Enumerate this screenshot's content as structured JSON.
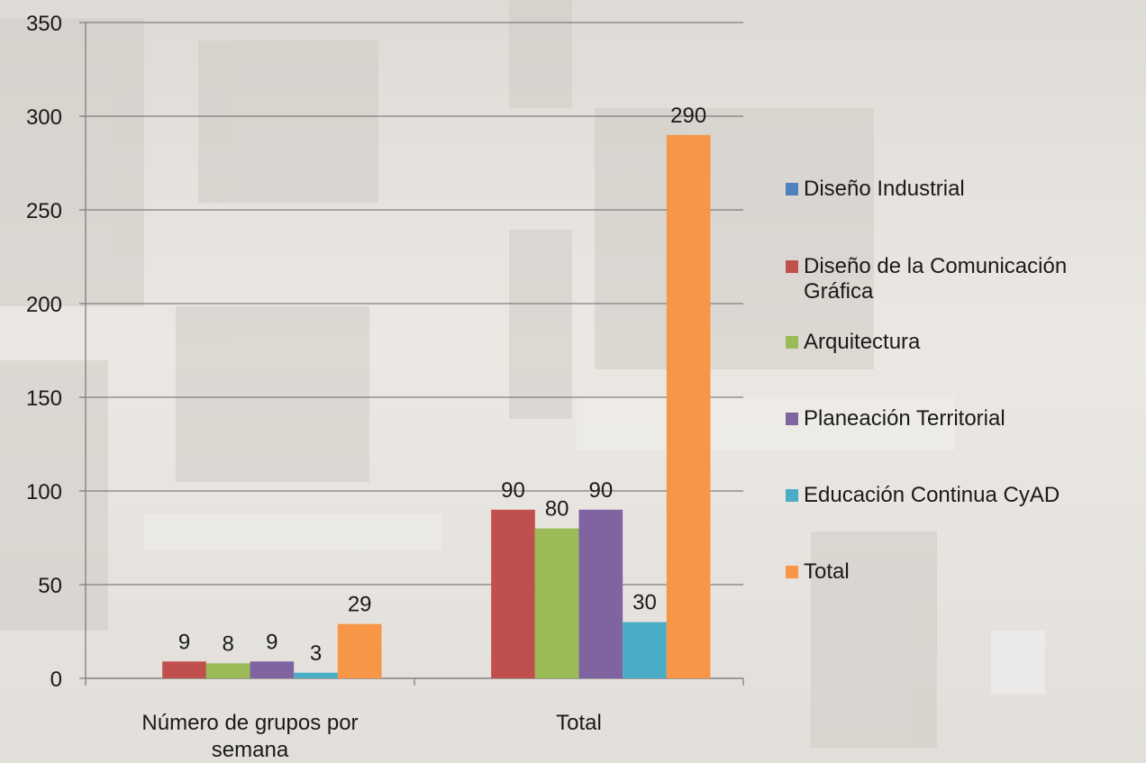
{
  "chart_data": {
    "type": "bar",
    "categories": [
      "Número de grupos por semana",
      "Total"
    ],
    "series": [
      {
        "name": "Diseño Industrial",
        "color": "#4f81bd",
        "values": [
          null,
          null
        ]
      },
      {
        "name": "Diseño de la Comunicación Gráfica",
        "color": "#c0504d",
        "values": [
          9,
          90
        ]
      },
      {
        "name": "Arquitectura",
        "color": "#9bbb59",
        "values": [
          8,
          80
        ]
      },
      {
        "name": "Planeación Territorial",
        "color": "#8064a2",
        "values": [
          9,
          90
        ]
      },
      {
        "name": "Educación Continua CyAD",
        "color": "#4bacc6",
        "values": [
          3,
          30
        ]
      },
      {
        "name": "Total",
        "color": "#f79646",
        "values": [
          29,
          290
        ]
      }
    ],
    "ylim": [
      0,
      350
    ],
    "yticks": [
      0,
      50,
      100,
      150,
      200,
      250,
      300,
      350
    ],
    "grid": true,
    "legend": "right"
  }
}
